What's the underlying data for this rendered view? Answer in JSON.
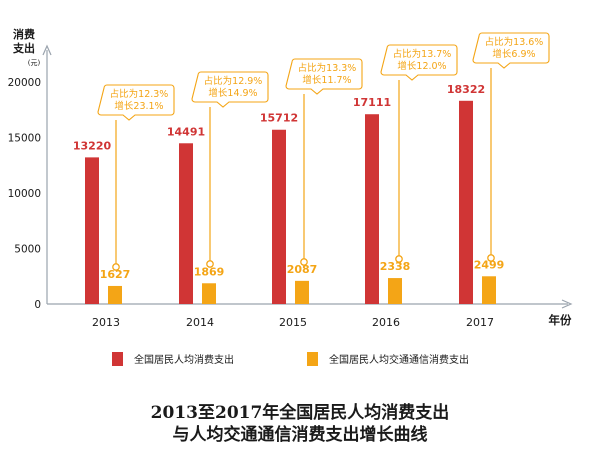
{
  "chart_data": {
    "type": "bar",
    "title_lines": [
      "2013至2017年全国居民人均消费支出",
      "与人均交通通信消费支出增长曲线"
    ],
    "ylabel_lines": [
      "消费",
      "支出"
    ],
    "yunit": "(元)",
    "xlabel": "年份",
    "ylim": [
      0,
      22000
    ],
    "yticks": [
      "0",
      "5000",
      "10000",
      "15000",
      "20000"
    ],
    "categories": [
      "2013",
      "2014",
      "2015",
      "2016",
      "2017"
    ],
    "series": [
      {
        "name": "全国居民人均消费支出",
        "color": "#d03535",
        "values": [
          13220,
          14491,
          15712,
          17111,
          18322
        ],
        "labels": [
          "13220",
          "14491",
          "15712",
          "17111",
          "18322"
        ]
      },
      {
        "name": "全国居民人均交通通信消费支出",
        "color": "#f4a516",
        "values": [
          1627,
          1869,
          2087,
          2338,
          2499
        ],
        "labels": [
          "1627",
          "1869",
          "2087",
          "2338",
          "2499"
        ]
      }
    ],
    "annotations": [
      {
        "line1": "占比为12.3%",
        "line2": "增长23.1%"
      },
      {
        "line1": "占比为12.9%",
        "line2": "增长14.9%"
      },
      {
        "line1": "占比为13.3%",
        "line2": "增长11.7%"
      },
      {
        "line1": "占比为13.7%",
        "line2": "增长12.0%"
      },
      {
        "line1": "占比为13.6%",
        "line2": "增长6.9%"
      }
    ],
    "axis_color": "#9aa3ad",
    "grid": false,
    "legend": "bottom"
  }
}
